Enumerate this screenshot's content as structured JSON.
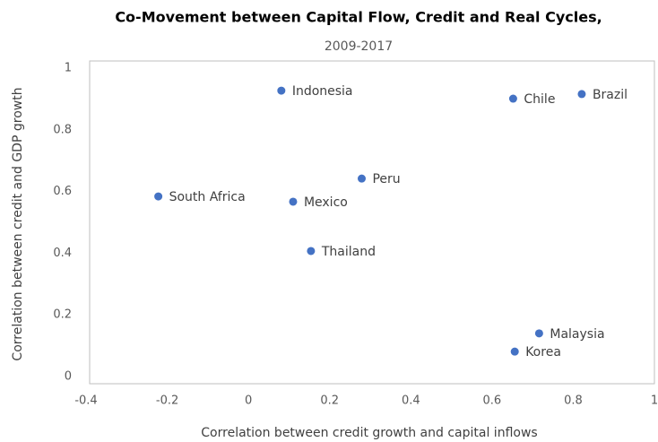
{
  "chart_data": {
    "type": "scatter",
    "title": "Co-Movement between Capital Flow, Credit and Real Cycles,",
    "subtitle": "2009-2017",
    "x_label": "Correlation between credit growth and capital inflows",
    "y_label": "Correlation between credit and GDP growth",
    "labels": [
      "Indonesia",
      "Chile",
      "Brazil",
      "Peru",
      "South Africa",
      "Mexico",
      "Thailand",
      "Malaysia",
      "Korea"
    ],
    "x": [
      0.081,
      0.652,
      0.821,
      0.279,
      -0.222,
      0.11,
      0.154,
      0.716,
      0.656
    ],
    "values": [
      0.927,
      0.901,
      0.916,
      0.642,
      0.584,
      0.567,
      0.407,
      0.14,
      0.081
    ],
    "color": "#4472c4",
    "xlim": [
      -0.4,
      1
    ],
    "xticks": [
      -0.4,
      -0.2,
      0,
      0.2,
      0.4,
      0.6,
      0.8,
      1
    ],
    "ylim": [
      0,
      1
    ],
    "yticks": [
      0,
      0.2,
      0.4,
      0.6,
      0.8,
      1
    ]
  }
}
